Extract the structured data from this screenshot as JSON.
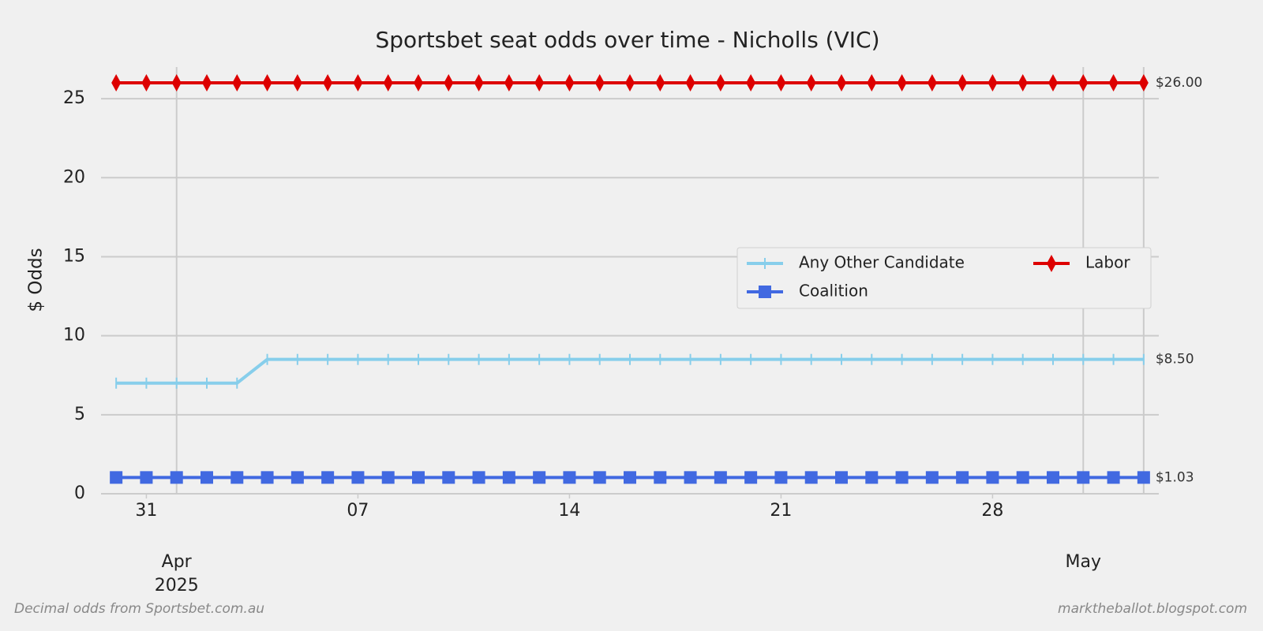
{
  "chart_data": {
    "type": "line",
    "title": "Sportsbet seat odds over time - Nicholls (VIC)",
    "ylabel": "$ Odds",
    "footer_left": "Decimal odds from Sportsbet.com.au",
    "footer_right": "marktheballot.blogspot.com",
    "x": [
      "2025-03-30",
      "2025-03-31",
      "2025-04-01",
      "2025-04-02",
      "2025-04-03",
      "2025-04-04",
      "2025-04-05",
      "2025-04-06",
      "2025-04-07",
      "2025-04-08",
      "2025-04-09",
      "2025-04-10",
      "2025-04-11",
      "2025-04-12",
      "2025-04-13",
      "2025-04-14",
      "2025-04-15",
      "2025-04-16",
      "2025-04-17",
      "2025-04-18",
      "2025-04-19",
      "2025-04-20",
      "2025-04-21",
      "2025-04-22",
      "2025-04-23",
      "2025-04-24",
      "2025-04-25",
      "2025-04-26",
      "2025-04-27",
      "2025-04-28",
      "2025-04-29",
      "2025-04-30",
      "2025-05-01",
      "2025-05-02",
      "2025-05-03"
    ],
    "xlim": [
      "2025-03-29T12:00:00Z",
      "2025-05-03T12:00:00Z"
    ],
    "xticks": [
      {
        "value": "2025-03-31",
        "label": "31"
      },
      {
        "value": "2025-04-07",
        "label": "07"
      },
      {
        "value": "2025-04-14",
        "label": "14"
      },
      {
        "value": "2025-04-21",
        "label": "21"
      },
      {
        "value": "2025-04-28",
        "label": "28"
      }
    ],
    "xticks_major": [
      {
        "value": "2025-04-01",
        "label": "Apr\n2025"
      },
      {
        "value": "2025-05-01",
        "label": "May"
      }
    ],
    "ylim": [
      0,
      27
    ],
    "yticks": [
      0,
      5,
      10,
      15,
      20,
      25
    ],
    "grid": true,
    "legend": "center right",
    "series": [
      {
        "name": "Any Other Candidate",
        "color": "#87ceeb",
        "marker": "vline",
        "end_label": "$8.50",
        "values": [
          7,
          7,
          7,
          7,
          7,
          8.5,
          8.5,
          8.5,
          8.5,
          8.5,
          8.5,
          8.5,
          8.5,
          8.5,
          8.5,
          8.5,
          8.5,
          8.5,
          8.5,
          8.5,
          8.5,
          8.5,
          8.5,
          8.5,
          8.5,
          8.5,
          8.5,
          8.5,
          8.5,
          8.5,
          8.5,
          8.5,
          8.5,
          8.5,
          8.5
        ]
      },
      {
        "name": "Coalition",
        "color": "#4169e1",
        "marker": "square",
        "end_label": "$1.03",
        "values": [
          1.03,
          1.03,
          1.03,
          1.03,
          1.03,
          1.03,
          1.03,
          1.03,
          1.03,
          1.03,
          1.03,
          1.03,
          1.03,
          1.03,
          1.03,
          1.03,
          1.03,
          1.03,
          1.03,
          1.03,
          1.03,
          1.03,
          1.03,
          1.03,
          1.03,
          1.03,
          1.03,
          1.03,
          1.03,
          1.03,
          1.03,
          1.03,
          1.03,
          1.03,
          1.03
        ]
      },
      {
        "name": "Labor",
        "color": "#dd0000",
        "marker": "diamond",
        "end_label": "$26.00",
        "values": [
          26,
          26,
          26,
          26,
          26,
          26,
          26,
          26,
          26,
          26,
          26,
          26,
          26,
          26,
          26,
          26,
          26,
          26,
          26,
          26,
          26,
          26,
          26,
          26,
          26,
          26,
          26,
          26,
          26,
          26,
          26,
          26,
          26,
          26,
          26
        ]
      }
    ]
  }
}
